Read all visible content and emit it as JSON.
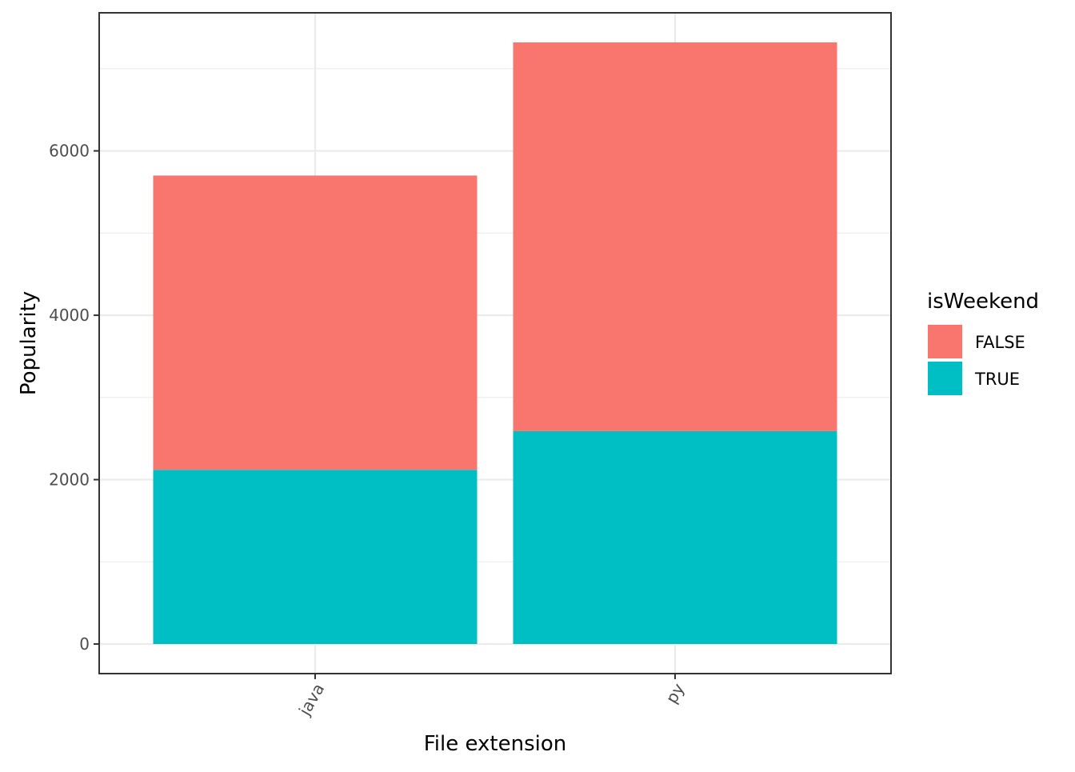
{
  "chart_data": {
    "type": "bar",
    "stacked": true,
    "categories": [
      "java",
      "py"
    ],
    "series": [
      {
        "name": "FALSE",
        "color": "#F8766D",
        "values": [
          3580,
          4730
        ]
      },
      {
        "name": "TRUE",
        "color": "#00BFC4",
        "values": [
          2120,
          2590
        ]
      }
    ],
    "xlabel": "File extension",
    "ylabel": "Popularity",
    "ylim": [
      -360,
      7680
    ],
    "yticks": [
      0,
      2000,
      4000,
      6000
    ],
    "ytick_labels": [
      "0",
      "2000",
      "4000",
      "6000"
    ],
    "grid": true,
    "x_tick_rotation_deg": -60,
    "legend": {
      "title": "isWeekend",
      "position": "right",
      "entries": [
        {
          "label": "FALSE",
          "color": "#F8766D"
        },
        {
          "label": "TRUE",
          "color": "#00BFC4"
        }
      ]
    }
  }
}
